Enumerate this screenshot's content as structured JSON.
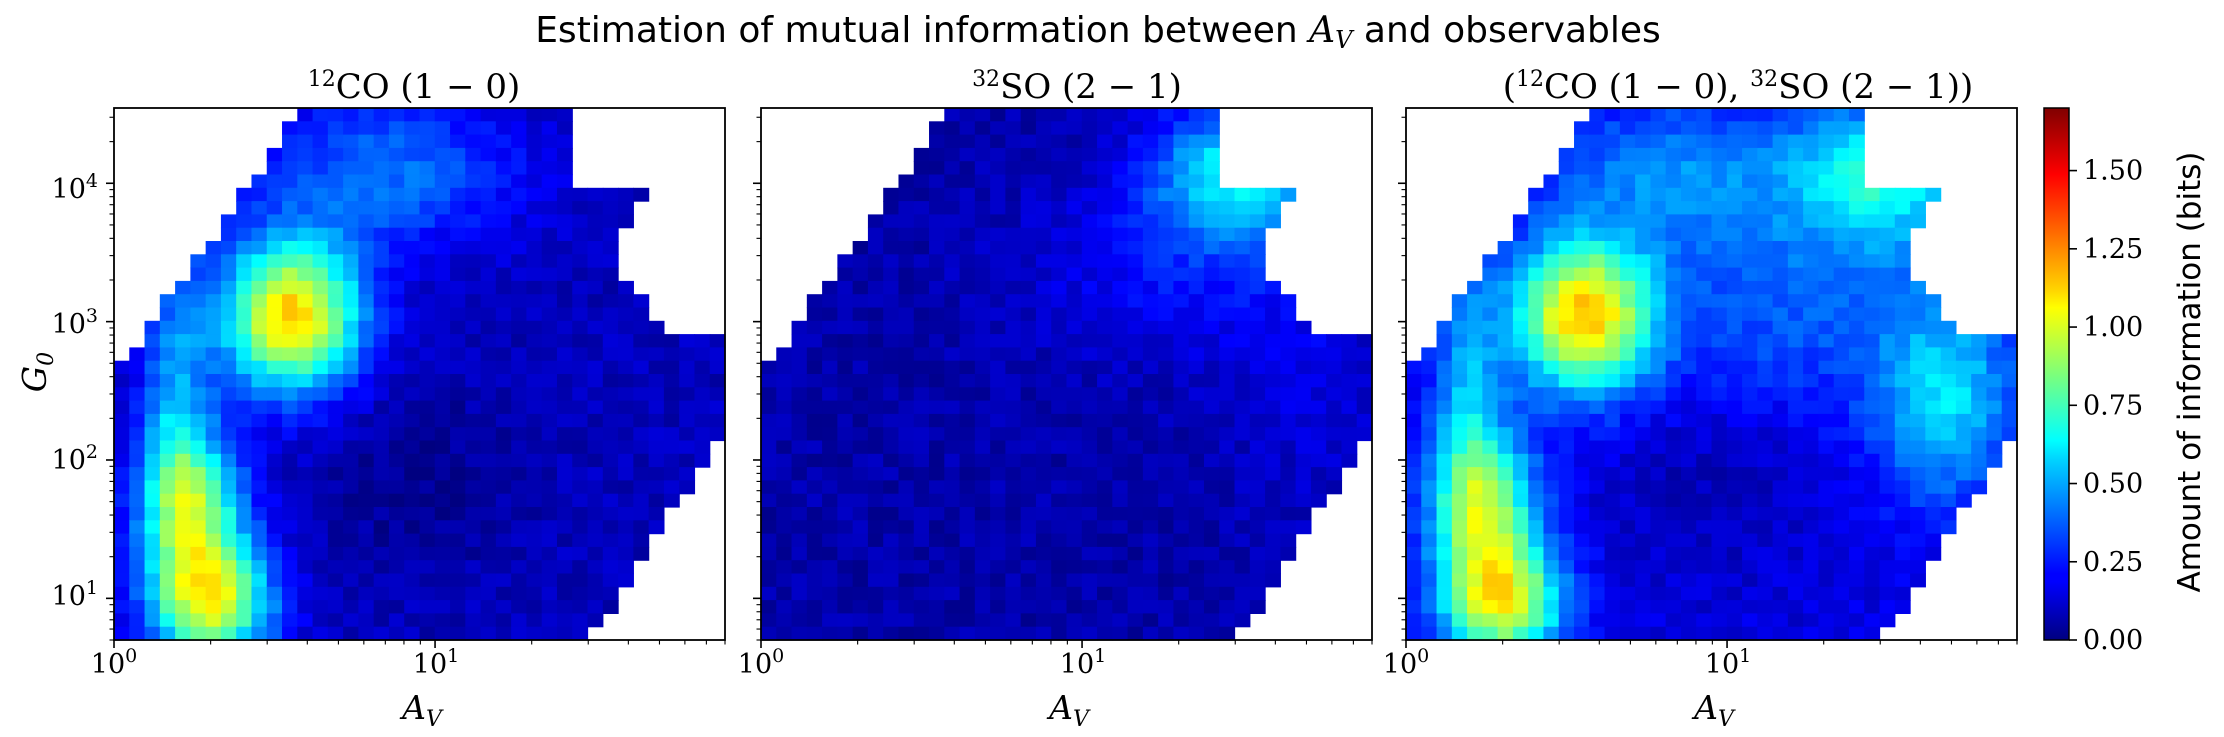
{
  "figure": {
    "title": "Estimation of mutual information between A_V and observables"
  },
  "chart_data": [
    {
      "type": "heatmap",
      "title": "¹²CO (1 − 0)",
      "xlabel": "A_V",
      "ylabel": "G_0",
      "x_scale": "log",
      "y_scale": "log",
      "xlim": [
        1,
        80
      ],
      "ylim": [
        5,
        35000
      ],
      "x_ticks": [
        "10⁰",
        "10¹"
      ],
      "y_ticks": [
        "10¹",
        "10²",
        "10³",
        "10⁴"
      ],
      "hotspots": [
        {
          "a_v": 3.7,
          "g0": 1100,
          "value": 1.15
        },
        {
          "a_v": 2.0,
          "g0": 8,
          "value": 0.95
        },
        {
          "a_v": 1.8,
          "g0": 40,
          "value": 0.85
        }
      ]
    },
    {
      "type": "heatmap",
      "title": "³²SO (2 − 1)",
      "xlabel": "A_V",
      "ylabel": "",
      "x_scale": "log",
      "y_scale": "log",
      "xlim": [
        1,
        80
      ],
      "ylim": [
        5,
        35000
      ],
      "x_ticks": [
        "10⁰",
        "10¹"
      ],
      "hotspots": [
        {
          "a_v": 30,
          "g0": 20000,
          "value": 0.65
        }
      ]
    },
    {
      "type": "heatmap",
      "title": "(¹²CO (1 − 0), ³²SO (2 − 1))",
      "xlabel": "A_V",
      "ylabel": "",
      "x_scale": "log",
      "y_scale": "log",
      "xlim": [
        1,
        80
      ],
      "ylim": [
        5,
        35000
      ],
      "x_ticks": [
        "10⁰",
        "10¹"
      ],
      "hotspots": [
        {
          "a_v": 3.7,
          "g0": 1100,
          "value": 1.15
        },
        {
          "a_v": 2.0,
          "g0": 8,
          "value": 0.95
        },
        {
          "a_v": 30,
          "g0": 20000,
          "value": 0.75
        },
        {
          "a_v": 55,
          "g0": 80,
          "value": 0.7
        }
      ]
    }
  ],
  "colorbar": {
    "label": "Amount of information (bits)",
    "colormap": "jet",
    "range": [
      0,
      1.7
    ],
    "ticks": [
      "0.00",
      "0.25",
      "0.50",
      "0.75",
      "1.00",
      "1.25",
      "1.50"
    ]
  }
}
